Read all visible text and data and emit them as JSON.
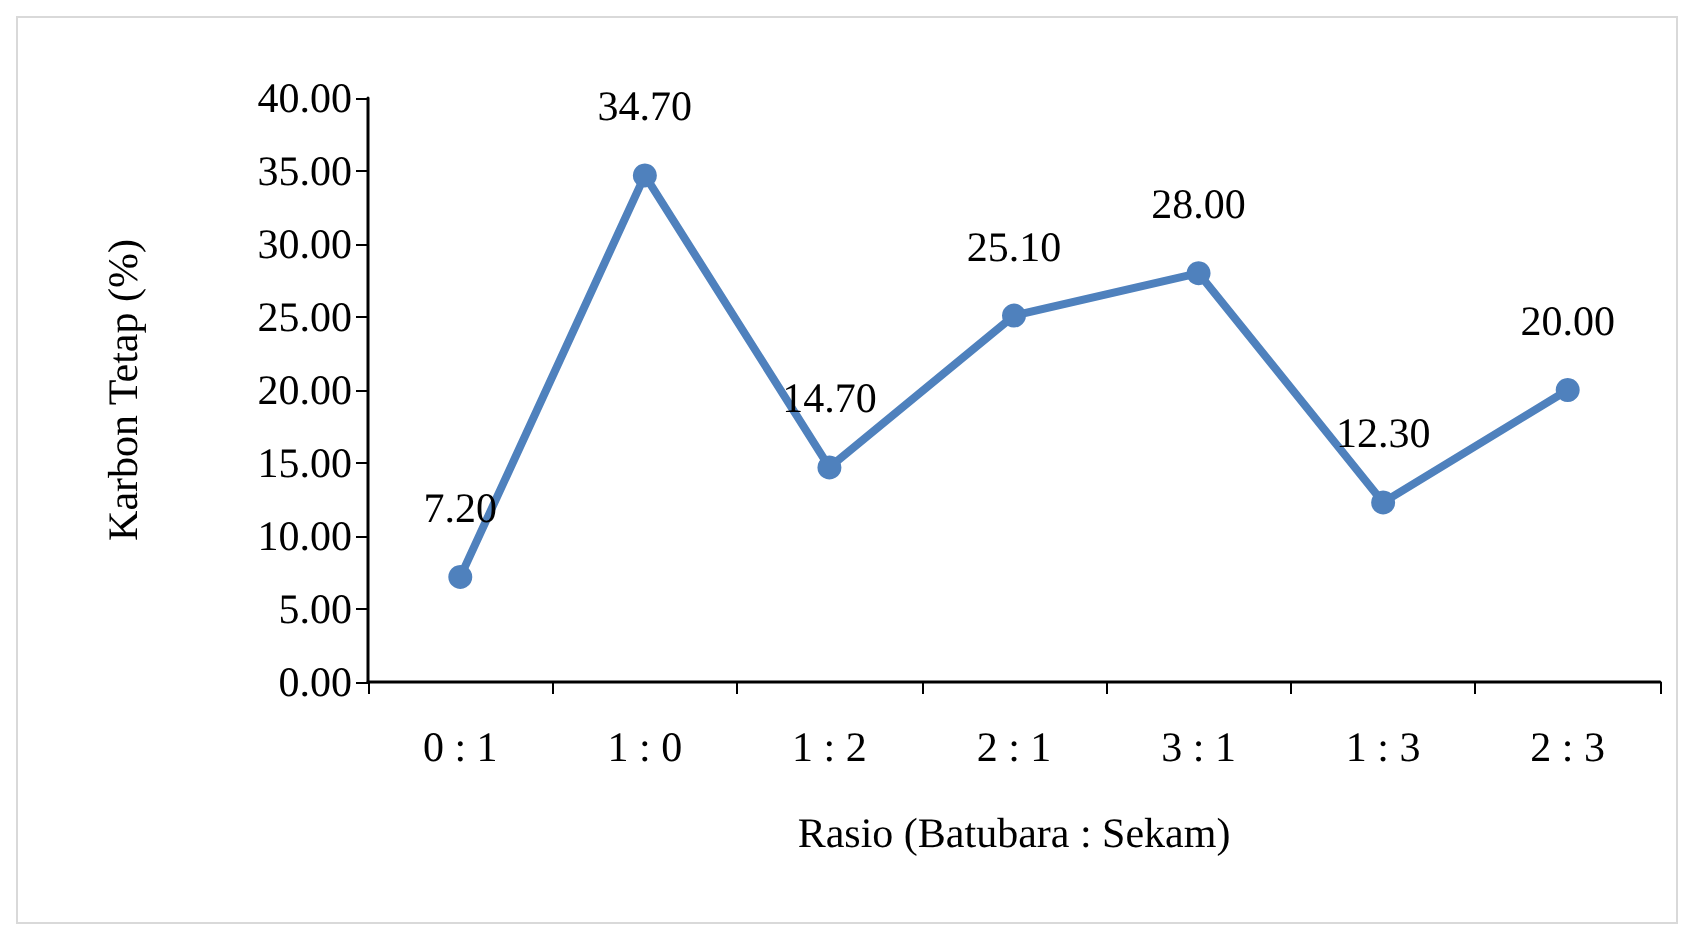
{
  "chart_data": {
    "type": "line",
    "xlabel": "Rasio (Batubara : Sekam)",
    "ylabel": "Karbon Tetap (%)",
    "categories": [
      "0 : 1",
      "1 : 0",
      "1 : 2",
      "2 : 1",
      "3 : 1",
      "1 : 3",
      "2 : 3"
    ],
    "series": [
      {
        "color": "#4f81bd",
        "values": [
          7.2,
          34.7,
          14.7,
          25.1,
          28.0,
          12.3,
          20.0
        ],
        "value_labels": [
          "7.20",
          "34.70",
          "14.70",
          "25.10",
          "28.00",
          "12.30",
          "20.00"
        ]
      }
    ],
    "ylim": [
      0,
      40
    ],
    "yticks": [
      {
        "value": 0,
        "label": "0.00"
      },
      {
        "value": 5,
        "label": "5.00"
      },
      {
        "value": 10,
        "label": "10.00"
      },
      {
        "value": 15,
        "label": "15.00"
      },
      {
        "value": 20,
        "label": "20.00"
      },
      {
        "value": 25,
        "label": "25.00"
      },
      {
        "value": 30,
        "label": "30.00"
      },
      {
        "value": 35,
        "label": "35.00"
      },
      {
        "value": 40,
        "label": "40.00"
      }
    ],
    "grid": false,
    "marker": "circle",
    "line_style": "solid"
  }
}
